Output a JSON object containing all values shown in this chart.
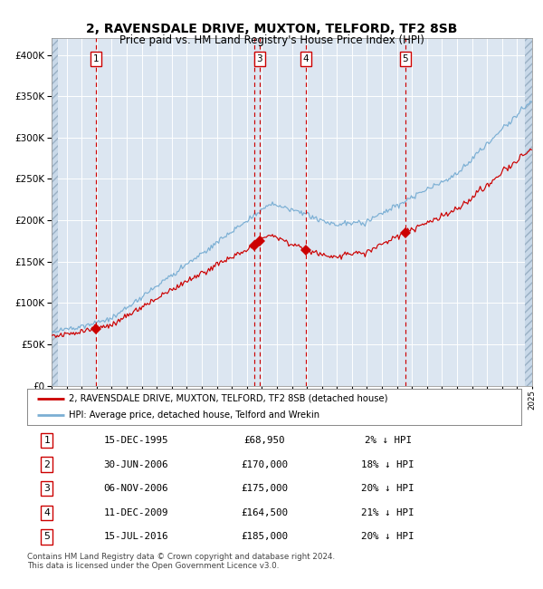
{
  "title": "2, RAVENSDALE DRIVE, MUXTON, TELFORD, TF2 8SB",
  "subtitle": "Price paid vs. HM Land Registry's House Price Index (HPI)",
  "title_fontsize": 10,
  "subtitle_fontsize": 8.5,
  "background_color": "#ffffff",
  "plot_bg_color": "#dce6f1",
  "grid_color": "#ffffff",
  "red_line_color": "#cc0000",
  "blue_line_color": "#7bafd4",
  "marker_color": "#cc0000",
  "dashed_line_color": "#cc0000",
  "legend_red_label": "2, RAVENSDALE DRIVE, MUXTON, TELFORD, TF2 8SB (detached house)",
  "legend_blue_label": "HPI: Average price, detached house, Telford and Wrekin",
  "footer": "Contains HM Land Registry data © Crown copyright and database right 2024.\nThis data is licensed under the Open Government Licence v3.0.",
  "ylim": [
    0,
    420000
  ],
  "yticks": [
    0,
    50000,
    100000,
    150000,
    200000,
    250000,
    300000,
    350000,
    400000
  ],
  "sale_x_years": [
    1995.958,
    2006.5,
    2006.847,
    2009.944,
    2016.542
  ],
  "sale_y": [
    68950,
    170000,
    175000,
    164500,
    185000
  ],
  "sale_labels": [
    "1",
    "2",
    "3",
    "4",
    "5"
  ],
  "show_label": [
    true,
    false,
    true,
    true,
    true
  ],
  "table_rows": [
    [
      "1",
      "15-DEC-1995",
      "£68,950",
      "2% ↓ HPI"
    ],
    [
      "2",
      "30-JUN-2006",
      "£170,000",
      "18% ↓ HPI"
    ],
    [
      "3",
      "06-NOV-2006",
      "£175,000",
      "20% ↓ HPI"
    ],
    [
      "4",
      "11-DEC-2009",
      "£164,500",
      "21% ↓ HPI"
    ],
    [
      "5",
      "15-JUL-2016",
      "£185,000",
      "20% ↓ HPI"
    ]
  ]
}
